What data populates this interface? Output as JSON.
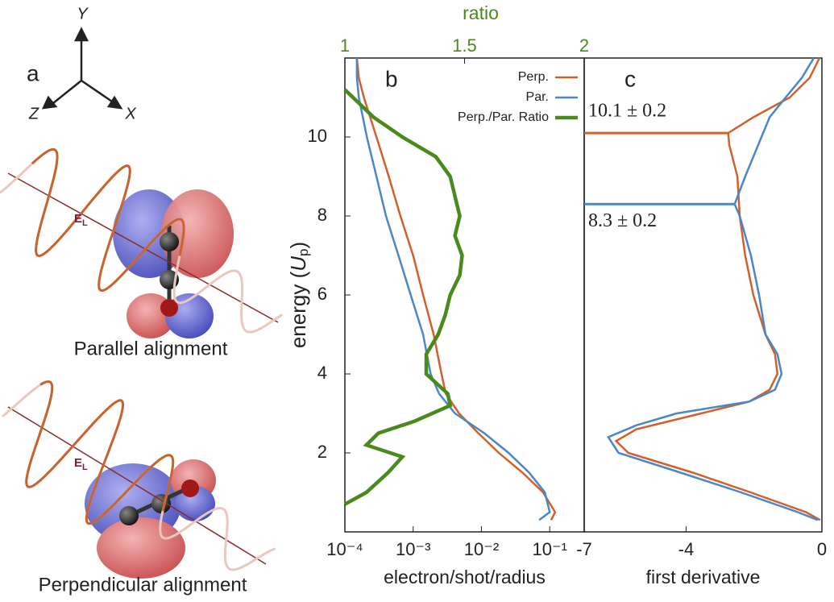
{
  "diagram": {
    "panel": "a",
    "axes": [
      "Y",
      "Z",
      "X"
    ],
    "field_label": {
      "main": "E",
      "sub": "L"
    },
    "captions": [
      "Parallel alignment",
      "Perpendicular alignment"
    ]
  },
  "chart_data": [
    {
      "type": "line",
      "panel": "b",
      "xlabel": "electron/shot/radius",
      "x2label": "ratio",
      "ylabel": {
        "pre": "energy (",
        "var": "U",
        "sub": "p",
        "post": ")"
      },
      "xscale": "log",
      "xlim": [
        0.0001,
        0.32
      ],
      "xticks": [
        {
          "value": 0.0001,
          "label": "10⁻⁴"
        },
        {
          "value": 0.001,
          "label": "10⁻³"
        },
        {
          "value": 0.01,
          "label": "10⁻²"
        },
        {
          "value": 0.1,
          "label": "10⁻¹"
        }
      ],
      "x2lim": [
        1,
        2
      ],
      "x2ticks": [
        1,
        1.5,
        2
      ],
      "x2color": "#4a8a1c",
      "ylim": [
        0,
        12
      ],
      "yticks": [
        2,
        4,
        6,
        8,
        10
      ],
      "legend": "top-right",
      "series": [
        {
          "name": "Perp.",
          "color": "#d2602a",
          "y": [
            0.3,
            0.5,
            1,
            1.5,
            2,
            2.5,
            3,
            3.5,
            4,
            5,
            6,
            7,
            8,
            9,
            10,
            11,
            11.5,
            12
          ],
          "values": [
            0.105,
            0.12,
            0.08,
            0.04,
            0.018,
            0.009,
            0.0047,
            0.003,
            0.0026,
            0.002,
            0.0014,
            0.001,
            0.00065,
            0.00044,
            0.00029,
            0.00019,
            0.00016,
            0.00015
          ]
        },
        {
          "name": "Par.",
          "color": "#4a86c8",
          "y": [
            0.3,
            0.5,
            1,
            1.5,
            2,
            2.5,
            3,
            3.5,
            4,
            5,
            6,
            7,
            8,
            9,
            10,
            11,
            11.5,
            12
          ],
          "values": [
            0.07,
            0.1,
            0.085,
            0.05,
            0.025,
            0.011,
            0.0041,
            0.0024,
            0.0018,
            0.0014,
            0.00092,
            0.00061,
            0.0004,
            0.00029,
            0.00021,
            0.00016,
            0.00015,
            0.00015
          ]
        },
        {
          "name": "Perp./Par. Ratio",
          "color": "#4a8a1c",
          "axis": "x2",
          "y": [
            0.7,
            1,
            1.5,
            1.9,
            2.2,
            2.5,
            2.8,
            3.2,
            3.5,
            4,
            4.5,
            5,
            5.5,
            6,
            6.5,
            7,
            7.5,
            8,
            8.5,
            9,
            9.5,
            10,
            10.5,
            11.2
          ],
          "values": [
            1.0,
            1.09,
            1.18,
            1.24,
            1.09,
            1.14,
            1.29,
            1.44,
            1.43,
            1.34,
            1.34,
            1.39,
            1.42,
            1.44,
            1.48,
            1.49,
            1.46,
            1.48,
            1.46,
            1.44,
            1.38,
            1.24,
            1.12,
            1.0
          ]
        }
      ]
    },
    {
      "type": "line",
      "panel": "c",
      "xlabel": "first derivative",
      "xlim": [
        -7,
        0
      ],
      "xticks": [
        -7,
        -4,
        0
      ],
      "ylim": [
        0,
        12
      ],
      "series": [
        {
          "color": "#d2602a",
          "y": [
            0.3,
            0.5,
            1,
            1.5,
            2,
            2.3,
            2.6,
            3,
            3.3,
            3.6,
            4,
            4.5,
            5,
            6,
            7,
            8,
            9,
            9.8,
            10.1,
            10.5,
            11,
            11.5,
            12
          ],
          "values": [
            -0.05,
            -0.47,
            -2.1,
            -3.8,
            -5.7,
            -6.06,
            -5.46,
            -3.56,
            -2.14,
            -1.54,
            -1.31,
            -1.38,
            -1.66,
            -2.02,
            -2.26,
            -2.42,
            -2.49,
            -2.73,
            -2.76,
            -2.02,
            -0.95,
            -0.36,
            -0.07
          ]
        },
        {
          "color": "#4a86c8",
          "y": [
            0.3,
            0.5,
            1,
            1.5,
            2,
            2.4,
            2.7,
            3,
            3.3,
            3.6,
            4,
            4.5,
            5,
            6,
            7,
            8,
            8.3,
            9,
            10,
            10.5,
            11,
            11.5,
            12
          ],
          "values": [
            -0.12,
            -0.71,
            -2.38,
            -4.16,
            -5.99,
            -6.29,
            -5.46,
            -4.28,
            -2.14,
            -1.38,
            -1.19,
            -1.31,
            -1.66,
            -1.85,
            -2.09,
            -2.42,
            -2.57,
            -2.26,
            -1.78,
            -1.54,
            -1.07,
            -0.59,
            -0.24
          ]
        }
      ],
      "annotations": [
        {
          "text": "10.1 ± 0.2",
          "y": 10.1,
          "x": -2.76,
          "color": "#d2602a"
        },
        {
          "text": "8.3 ± 0.2",
          "y": 8.3,
          "x": -2.57,
          "color": "#4a86c8"
        }
      ]
    }
  ]
}
